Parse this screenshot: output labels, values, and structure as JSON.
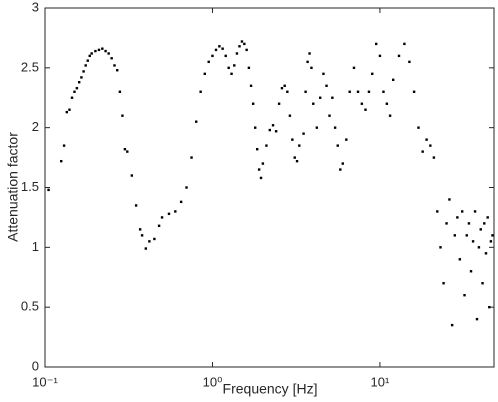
{
  "chart_data": {
    "type": "scatter",
    "xlabel": "Frequency [Hz]",
    "ylabel": "Attenuation factor",
    "xscale": "log",
    "color": "#000000",
    "xlim": [
      0.1,
      48
    ],
    "ylim": [
      0,
      3
    ],
    "xticks": [
      {
        "value": 0.1,
        "label": "10⁻¹"
      },
      {
        "value": 1,
        "label": "10⁰"
      },
      {
        "value": 10,
        "label": "10¹"
      }
    ],
    "yticks": [
      0,
      0.5,
      1,
      1.5,
      2,
      2.5,
      3
    ],
    "x": [
      0.105,
      0.125,
      0.13,
      0.135,
      0.14,
      0.145,
      0.15,
      0.155,
      0.16,
      0.165,
      0.17,
      0.175,
      0.18,
      0.185,
      0.19,
      0.2,
      0.21,
      0.22,
      0.23,
      0.24,
      0.25,
      0.26,
      0.27,
      0.28,
      0.29,
      0.3,
      0.31,
      0.33,
      0.35,
      0.37,
      0.38,
      0.4,
      0.42,
      0.45,
      0.48,
      0.5,
      0.55,
      0.6,
      0.65,
      0.7,
      0.75,
      0.8,
      0.85,
      0.9,
      0.95,
      1.0,
      1.05,
      1.1,
      1.15,
      1.2,
      1.25,
      1.3,
      1.35,
      1.4,
      1.45,
      1.5,
      1.55,
      1.6,
      1.65,
      1.7,
      1.75,
      1.8,
      1.85,
      1.9,
      1.95,
      2.0,
      2.1,
      2.2,
      2.3,
      2.4,
      2.5,
      2.6,
      2.7,
      2.8,
      2.9,
      3.0,
      3.1,
      3.2,
      3.3,
      3.5,
      3.6,
      3.7,
      3.8,
      3.9,
      4.0,
      4.2,
      4.4,
      4.6,
      4.8,
      5.0,
      5.2,
      5.4,
      5.6,
      5.8,
      6.0,
      6.3,
      6.6,
      7.0,
      7.4,
      7.8,
      8.2,
      8.6,
      9.0,
      9.5,
      10,
      10.5,
      11,
      11.5,
      12,
      13,
      14,
      15,
      16,
      17,
      18,
      19,
      20,
      21,
      22,
      23,
      24,
      25,
      26,
      27,
      28,
      29,
      30,
      31,
      32,
      33,
      34,
      35,
      36,
      37,
      38,
      39,
      40,
      41,
      42,
      43,
      44,
      45,
      46,
      47
    ],
    "values": [
      1.48,
      1.72,
      1.85,
      2.13,
      2.15,
      2.25,
      2.3,
      2.33,
      2.38,
      2.42,
      2.47,
      2.52,
      2.56,
      2.6,
      2.62,
      2.64,
      2.65,
      2.66,
      2.64,
      2.62,
      2.58,
      2.52,
      2.48,
      2.3,
      2.1,
      1.82,
      1.8,
      1.6,
      1.35,
      1.15,
      1.1,
      0.99,
      1.05,
      1.07,
      1.18,
      1.25,
      1.28,
      1.3,
      1.38,
      1.5,
      1.75,
      2.05,
      2.3,
      2.45,
      2.55,
      2.6,
      2.65,
      2.68,
      2.66,
      2.6,
      2.5,
      2.45,
      2.52,
      2.62,
      2.68,
      2.72,
      2.7,
      2.65,
      2.5,
      2.35,
      2.2,
      2.0,
      1.82,
      1.65,
      1.58,
      1.7,
      1.85,
      1.98,
      2.02,
      1.97,
      2.2,
      2.33,
      2.35,
      2.3,
      2.1,
      1.9,
      1.75,
      1.72,
      1.85,
      1.95,
      2.3,
      2.55,
      2.62,
      2.5,
      2.2,
      2.0,
      2.25,
      2.45,
      2.35,
      2.1,
      2.25,
      2.0,
      1.85,
      1.65,
      1.7,
      1.9,
      2.3,
      2.5,
      2.3,
      2.2,
      2.15,
      2.3,
      2.45,
      2.7,
      2.6,
      2.3,
      2.2,
      2.1,
      2.4,
      2.6,
      2.7,
      2.55,
      2.3,
      2.0,
      1.8,
      1.9,
      1.85,
      1.75,
      1.3,
      1.0,
      0.7,
      1.2,
      1.4,
      0.35,
      1.1,
      1.25,
      0.9,
      1.3,
      0.6,
      1.1,
      1.2,
      0.8,
      1.05,
      1.3,
      0.4,
      1.0,
      1.15,
      0.7,
      1.2,
      0.95,
      1.25,
      0.5,
      1.05,
      1.1
    ]
  }
}
